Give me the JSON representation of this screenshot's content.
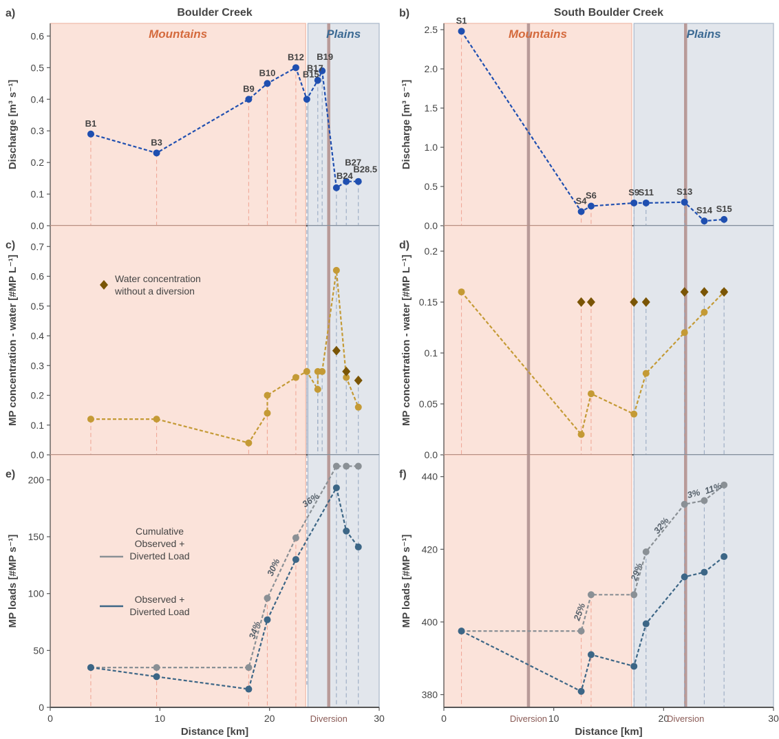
{
  "figure": {
    "bg_mountains": "#fbe3da",
    "bg_plains": "#e2e6ec",
    "mountains_edge": "#f0b9a8",
    "plains_edge": "#a8b6c9",
    "diversion_color": "#b89a98",
    "axis_color": "#555555",
    "text_color": "#444444",
    "mountains_text_color": "#d46a3d",
    "plains_text_color": "#3c6a93",
    "discharge_color": "#1f4fb0",
    "water_color": "#c49a35",
    "diamond_color": "#7a5506",
    "load_gray": "#8a9095",
    "load_blue": "#3c6686"
  },
  "chart_data": [
    {
      "panel": "a)",
      "title": "Boulder Creek",
      "type": "line",
      "ylabel": "Discharge [m³ s⁻¹]",
      "xlim": [
        0,
        30
      ],
      "ylim": [
        0,
        0.64
      ],
      "yticks": [
        "0.0",
        "0.1",
        "0.2",
        "0.3",
        "0.4",
        "0.5",
        "0.6"
      ],
      "xticks": [],
      "regions": [
        {
          "name": "Mountains",
          "from": 0,
          "to": 23.3
        },
        {
          "name": "Plains",
          "from": 23.5,
          "to": 30
        }
      ],
      "diversions": [
        25.4
      ],
      "series": [
        {
          "values": [
            {
              "x": 3.7,
              "y": 0.29,
              "label": "B1"
            },
            {
              "x": 9.7,
              "y": 0.23,
              "label": "B3"
            },
            {
              "x": 18.1,
              "y": 0.4,
              "label": "B9"
            },
            {
              "x": 19.8,
              "y": 0.45,
              "label": "B10"
            },
            {
              "x": 22.4,
              "y": 0.5,
              "label": "B12"
            },
            {
              "x": 23.4,
              "y": 0.4,
              "label": "B15"
            },
            {
              "x": 24.4,
              "y": 0.46,
              "label": "B17"
            },
            {
              "x": 24.8,
              "y": 0.49,
              "label": "B19"
            },
            {
              "x": 26.1,
              "y": 0.12,
              "label": "B24"
            },
            {
              "x": 27.0,
              "y": 0.14,
              "label": "B27"
            },
            {
              "x": 28.1,
              "y": 0.14,
              "label": "B28.5"
            }
          ]
        }
      ]
    },
    {
      "panel": "b)",
      "title": "South Boulder Creek",
      "type": "line",
      "ylabel": "Discharge [m³ s⁻¹]",
      "xlim": [
        0,
        30
      ],
      "ylim": [
        0,
        2.58
      ],
      "yticks": [
        "0.0",
        "0.5",
        "1.0",
        "1.5",
        "2.0",
        "2.5"
      ],
      "xticks": [],
      "regions": [
        {
          "name": "Mountains",
          "from": 0,
          "to": 17.1
        },
        {
          "name": "Plains",
          "from": 17.3,
          "to": 30
        }
      ],
      "diversions": [
        7.7,
        22.0
      ],
      "series": [
        {
          "values": [
            {
              "x": 1.6,
              "y": 2.48,
              "label": "S1"
            },
            {
              "x": 12.5,
              "y": 0.18,
              "label": "S4"
            },
            {
              "x": 13.4,
              "y": 0.25,
              "label": "S6"
            },
            {
              "x": 17.3,
              "y": 0.29,
              "label": "S9"
            },
            {
              "x": 18.4,
              "y": 0.29,
              "label": "S11"
            },
            {
              "x": 21.9,
              "y": 0.3,
              "label": "S13"
            },
            {
              "x": 23.7,
              "y": 0.06,
              "label": "S14"
            },
            {
              "x": 25.5,
              "y": 0.08,
              "label": "S15"
            }
          ]
        }
      ]
    },
    {
      "panel": "c)",
      "type": "line",
      "ylabel": "MP concentration - water [#MP L⁻¹]",
      "xlim": [
        0,
        30
      ],
      "ylim": [
        0,
        0.77
      ],
      "yticks": [
        "0.0",
        "0.1",
        "0.2",
        "0.3",
        "0.4",
        "0.5",
        "0.6",
        "0.7"
      ],
      "xticks": [],
      "regions": [
        {
          "name": "",
          "from": 0,
          "to": 23.3
        },
        {
          "name": "",
          "from": 23.5,
          "to": 30
        }
      ],
      "diversions": [
        25.4
      ],
      "legend": [
        {
          "label": "Water concentration\nwithout a diversion",
          "marker": "diamond"
        }
      ],
      "series": [
        {
          "values": [
            {
              "x": 3.7,
              "y": 0.12
            },
            {
              "x": 9.7,
              "y": 0.12
            },
            {
              "x": 18.1,
              "y": 0.04
            },
            {
              "x": 19.8,
              "y": 0.14
            },
            {
              "x": 19.8,
              "y": 0.2
            },
            {
              "x": 22.4,
              "y": 0.26
            },
            {
              "x": 23.4,
              "y": 0.28
            },
            {
              "x": 24.4,
              "y": 0.22
            },
            {
              "x": 24.4,
              "y": 0.28
            },
            {
              "x": 24.8,
              "y": 0.28
            },
            {
              "x": 26.1,
              "y": 0.62
            },
            {
              "x": 27.0,
              "y": 0.26
            },
            {
              "x": 28.1,
              "y": 0.16
            }
          ]
        },
        {
          "name": "Water concentration without a diversion",
          "marker": "diamond",
          "values": [
            {
              "x": 26.1,
              "y": 0.35
            },
            {
              "x": 27.0,
              "y": 0.28
            },
            {
              "x": 28.1,
              "y": 0.25
            }
          ]
        }
      ]
    },
    {
      "panel": "d)",
      "type": "line",
      "ylabel": "MP concentration - water [#MP L⁻¹]",
      "xlim": [
        0,
        30
      ],
      "ylim": [
        0,
        0.225
      ],
      "yticks": [
        "0.0",
        "0.05",
        "0.1",
        "0.15",
        "0.2"
      ],
      "xticks": [],
      "regions": [
        {
          "name": "",
          "from": 0,
          "to": 17.1
        },
        {
          "name": "",
          "from": 17.3,
          "to": 30
        }
      ],
      "diversions": [
        7.7,
        22.0
      ],
      "series": [
        {
          "values": [
            {
              "x": 1.6,
              "y": 0.16
            },
            {
              "x": 12.5,
              "y": 0.02
            },
            {
              "x": 13.4,
              "y": 0.06
            },
            {
              "x": 17.3,
              "y": 0.04
            },
            {
              "x": 18.4,
              "y": 0.08
            },
            {
              "x": 21.9,
              "y": 0.12
            },
            {
              "x": 23.7,
              "y": 0.14
            },
            {
              "x": 25.5,
              "y": 0.16
            }
          ]
        },
        {
          "marker": "diamond",
          "values": [
            {
              "x": 12.5,
              "y": 0.15
            },
            {
              "x": 13.4,
              "y": 0.15
            },
            {
              "x": 17.3,
              "y": 0.15
            },
            {
              "x": 18.4,
              "y": 0.15
            },
            {
              "x": 21.9,
              "y": 0.16
            },
            {
              "x": 23.7,
              "y": 0.16
            },
            {
              "x": 25.5,
              "y": 0.16
            }
          ]
        }
      ]
    },
    {
      "panel": "e)",
      "type": "line",
      "ylabel": "MP loads [#MP s⁻¹]",
      "xlabel": "Distance [km]",
      "xlim": [
        0,
        30
      ],
      "ylim": [
        0,
        222
      ],
      "yticks": [
        "0",
        "50",
        "100",
        "150",
        "200"
      ],
      "xticks": [
        "0",
        "10",
        "20",
        "30"
      ],
      "regions": [
        {
          "name": "",
          "from": 0,
          "to": 23.3
        },
        {
          "name": "",
          "from": 23.5,
          "to": 30
        }
      ],
      "diversions": [
        25.4
      ],
      "diversion_label": "Diversion",
      "legend": [
        {
          "label": "Cumulative\nObserved +\nDiverted Load",
          "color": "#8a9095"
        },
        {
          "label": "Observed +\nDiverted Load",
          "color": "#3c6686"
        }
      ],
      "annotations": [
        {
          "text": "34%",
          "x": 18.9,
          "y": 67,
          "rotate": -70
        },
        {
          "text": "30%",
          "x": 20.6,
          "y": 122,
          "rotate": -65
        },
        {
          "text": "36%",
          "x": 23.9,
          "y": 180,
          "rotate": -35
        }
      ],
      "series": [
        {
          "name": "Cumulative Observed + Diverted Load",
          "values": [
            {
              "x": 3.7,
              "y": 35
            },
            {
              "x": 9.7,
              "y": 35
            },
            {
              "x": 18.1,
              "y": 35
            },
            {
              "x": 19.8,
              "y": 96
            },
            {
              "x": 22.4,
              "y": 149
            },
            {
              "x": 26.1,
              "y": 212
            },
            {
              "x": 27.0,
              "y": 212
            },
            {
              "x": 28.1,
              "y": 212
            }
          ]
        },
        {
          "name": "Observed + Diverted Load",
          "values": [
            {
              "x": 3.7,
              "y": 35
            },
            {
              "x": 9.7,
              "y": 27
            },
            {
              "x": 18.1,
              "y": 16
            },
            {
              "x": 19.8,
              "y": 77
            },
            {
              "x": 22.4,
              "y": 130
            },
            {
              "x": 26.1,
              "y": 193
            },
            {
              "x": 27.0,
              "y": 155
            },
            {
              "x": 28.1,
              "y": 141
            }
          ]
        }
      ]
    },
    {
      "panel": "f)",
      "type": "line",
      "ylabel": "MP loads [#MP s⁻¹]",
      "xlabel": "Distance [km]",
      "xlim": [
        0,
        30
      ],
      "ylim": [
        376.5,
        446
      ],
      "yticks": [
        "380",
        "400",
        "420",
        "440"
      ],
      "xticks": [
        "0",
        "10",
        "20",
        "30"
      ],
      "regions": [
        {
          "name": "",
          "from": 0,
          "to": 17.1
        },
        {
          "name": "",
          "from": 17.3,
          "to": 30
        }
      ],
      "diversions": [
        7.7,
        22.0
      ],
      "diversion_label": "Diversion",
      "annotations": [
        {
          "text": "25%",
          "x": 12.6,
          "y": 402.5,
          "rotate": -70
        },
        {
          "text": "29%",
          "x": 17.8,
          "y": 413.5,
          "rotate": -70
        },
        {
          "text": "32%",
          "x": 20.0,
          "y": 426,
          "rotate": -50
        },
        {
          "text": "3%",
          "x": 22.8,
          "y": 434.5,
          "rotate": -15
        },
        {
          "text": "11%",
          "x": 24.6,
          "y": 436,
          "rotate": -20
        }
      ],
      "series": [
        {
          "name": "Cumulative Observed + Diverted Load",
          "values": [
            {
              "x": 1.6,
              "y": 397.5
            },
            {
              "x": 12.5,
              "y": 397.5
            },
            {
              "x": 13.4,
              "y": 407.5
            },
            {
              "x": 17.3,
              "y": 407.5
            },
            {
              "x": 18.4,
              "y": 419.3
            },
            {
              "x": 21.9,
              "y": 432.4
            },
            {
              "x": 23.7,
              "y": 433.4
            },
            {
              "x": 25.5,
              "y": 437.7
            }
          ]
        },
        {
          "name": "Observed + Diverted Load",
          "values": [
            {
              "x": 1.6,
              "y": 397.5
            },
            {
              "x": 12.5,
              "y": 380.9
            },
            {
              "x": 13.4,
              "y": 391.0
            },
            {
              "x": 17.3,
              "y": 387.8
            },
            {
              "x": 18.4,
              "y": 399.5
            },
            {
              "x": 21.9,
              "y": 412.4
            },
            {
              "x": 23.7,
              "y": 413.7
            },
            {
              "x": 25.5,
              "y": 418.0
            }
          ]
        }
      ]
    }
  ]
}
